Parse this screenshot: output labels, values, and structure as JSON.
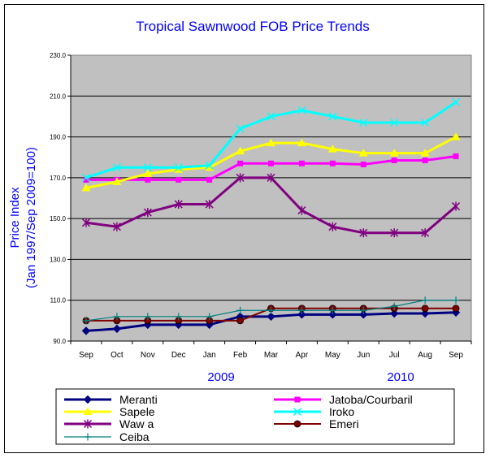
{
  "chart_data": {
    "type": "line",
    "title": "Tropical Sawnwood FOB Price Trends",
    "ylabel_lines": [
      "Price Index",
      "(Jan 1997/Sep 2009=100)"
    ],
    "xlabel": "",
    "ylim": [
      90,
      230
    ],
    "yticks": [
      "90.0",
      "110.0",
      "130.0",
      "150.0",
      "170.0",
      "190.0",
      "210.0",
      "230.0"
    ],
    "grid": true,
    "categories": [
      "Sep",
      "Oct",
      "Nov",
      "Dec",
      "Jan",
      "Feb",
      "Mar",
      "Apr",
      "May",
      "Jun",
      "Jul",
      "Aug",
      "Sep"
    ],
    "year_labels": [
      "2009",
      "2010"
    ],
    "legend_position": "bottom",
    "series": [
      {
        "name": "Meranti",
        "color": "#000080",
        "marker": "diamond",
        "values": [
          95,
          96,
          98,
          98,
          98,
          102,
          102,
          103,
          103,
          103,
          103.5,
          103.5,
          104
        ]
      },
      {
        "name": "Jatoba/Courbaril",
        "color": "#ff00ff",
        "marker": "square",
        "values": [
          169,
          169,
          169,
          169,
          169,
          177,
          177,
          177,
          177,
          176.5,
          178.5,
          178.5,
          180.5
        ]
      },
      {
        "name": "Sapele",
        "color": "#ffff00",
        "marker": "triangle",
        "values": [
          165,
          168,
          172,
          174,
          175,
          183,
          187,
          187,
          184,
          182,
          182,
          182,
          190
        ]
      },
      {
        "name": "Iroko",
        "color": "#00ffff",
        "marker": "x",
        "values": [
          170,
          175,
          175,
          175,
          176,
          194,
          200,
          203,
          200,
          197,
          197,
          197,
          207
        ]
      },
      {
        "name": "Waw a",
        "color": "#800080",
        "marker": "asterisk",
        "values": [
          148,
          146,
          153,
          157,
          157,
          170,
          170,
          154,
          146,
          143,
          143,
          143,
          156
        ]
      },
      {
        "name": "Emeri",
        "color": "#800000",
        "marker": "circle",
        "values": [
          100,
          100,
          100,
          100,
          100,
          100,
          106,
          106,
          106,
          106,
          106,
          106,
          106
        ]
      },
      {
        "name": "Ceiba",
        "color": "#008080",
        "marker": "plus",
        "values": [
          100,
          102,
          102,
          102,
          102,
          105,
          105,
          105,
          105,
          105,
          107,
          110,
          110
        ]
      }
    ]
  }
}
